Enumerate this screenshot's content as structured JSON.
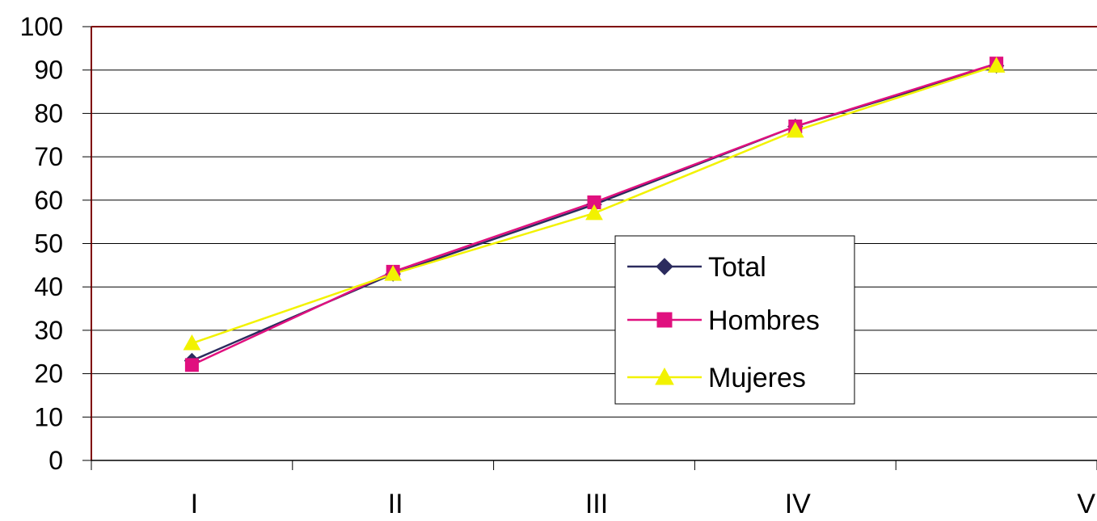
{
  "chart_data": {
    "type": "line",
    "categories": [
      "I",
      "II",
      "III",
      "IV",
      "V"
    ],
    "series": [
      {
        "name": "Total",
        "values": [
          23,
          43,
          59,
          77,
          91
        ],
        "color": "#2b2b5e",
        "marker": "diamond"
      },
      {
        "name": "Hombres",
        "values": [
          22,
          43.5,
          59.5,
          77,
          91.5
        ],
        "color": "#e0107f",
        "marker": "square"
      },
      {
        "name": "Mujeres",
        "values": [
          27,
          43,
          57,
          76,
          91
        ],
        "color": "#f2f200",
        "marker": "triangle"
      }
    ],
    "ylim": [
      0,
      100
    ],
    "yticks": [
      0,
      10,
      20,
      30,
      40,
      50,
      60,
      70,
      80,
      90,
      100
    ],
    "grid": true,
    "legend": "center-right",
    "title": "",
    "xlabel": "",
    "ylabel": ""
  }
}
